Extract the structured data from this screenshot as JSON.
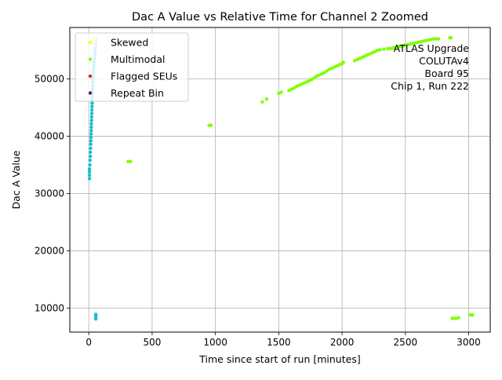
{
  "chart_data": {
    "type": "scatter",
    "title": "Dac A Value vs Relative Time for Channel 2 Zoomed",
    "xlabel": "Time since start of run [minutes]",
    "ylabel": "Dac A Value",
    "xlim": [
      -150,
      3170
    ],
    "ylim": [
      5800,
      59000
    ],
    "xticks": [
      0,
      500,
      1000,
      1500,
      2000,
      2500,
      3000
    ],
    "xtick_labels": [
      "0",
      "500",
      "1000",
      "1500",
      "2000",
      "2500",
      "3000"
    ],
    "yticks": [
      10000,
      20000,
      30000,
      40000,
      50000
    ],
    "ytick_labels": [
      "10000",
      "20000",
      "30000",
      "40000",
      "50000"
    ],
    "grid": true,
    "legend_position": "top-left",
    "annotation": [
      "ATLAS Upgrade",
      "COLUTAv4",
      "Board 95",
      "Chip 1, Run 222"
    ],
    "series": [
      {
        "name": "Skewed",
        "color": "#ffff00",
        "points": [
          [
            40,
            56800
          ],
          [
            45,
            57200
          ],
          [
            50,
            57000
          ]
        ]
      },
      {
        "name": "Multimodal",
        "color": "#7fff00",
        "points": [
          [
            310,
            35600
          ],
          [
            330,
            35600
          ],
          [
            950,
            41900
          ],
          [
            965,
            41900
          ],
          [
            1370,
            46000
          ],
          [
            1405,
            46500
          ],
          [
            1500,
            47500
          ],
          [
            1520,
            47700
          ],
          [
            1580,
            48000
          ],
          [
            1600,
            48200
          ],
          [
            1620,
            48400
          ],
          [
            1640,
            48700
          ],
          [
            1660,
            48900
          ],
          [
            1680,
            49100
          ],
          [
            1700,
            49300
          ],
          [
            1720,
            49500
          ],
          [
            1740,
            49700
          ],
          [
            1760,
            49900
          ],
          [
            1780,
            50200
          ],
          [
            1800,
            50500
          ],
          [
            1820,
            50700
          ],
          [
            1840,
            50900
          ],
          [
            1860,
            51100
          ],
          [
            1880,
            51400
          ],
          [
            1900,
            51700
          ],
          [
            1920,
            51900
          ],
          [
            1940,
            52100
          ],
          [
            1960,
            52300
          ],
          [
            1980,
            52500
          ],
          [
            2000,
            52700
          ],
          [
            2010,
            52900
          ],
          [
            2100,
            53200
          ],
          [
            2120,
            53400
          ],
          [
            2140,
            53600
          ],
          [
            2160,
            53800
          ],
          [
            2180,
            54000
          ],
          [
            2200,
            54200
          ],
          [
            2220,
            54400
          ],
          [
            2240,
            54600
          ],
          [
            2260,
            54800
          ],
          [
            2280,
            55000
          ],
          [
            2300,
            55100
          ],
          [
            2330,
            55200
          ],
          [
            2360,
            55300
          ],
          [
            2380,
            55300
          ],
          [
            2400,
            55400
          ],
          [
            2420,
            55500
          ],
          [
            2440,
            55600
          ],
          [
            2460,
            55700
          ],
          [
            2480,
            55800
          ],
          [
            2500,
            55900
          ],
          [
            2520,
            56000
          ],
          [
            2540,
            56100
          ],
          [
            2560,
            56200
          ],
          [
            2580,
            56300
          ],
          [
            2600,
            56400
          ],
          [
            2620,
            56500
          ],
          [
            2640,
            56600
          ],
          [
            2660,
            56700
          ],
          [
            2680,
            56800
          ],
          [
            2700,
            56900
          ],
          [
            2720,
            57000
          ],
          [
            2740,
            57000
          ],
          [
            2760,
            57000
          ],
          [
            2850,
            57200
          ],
          [
            2860,
            57200
          ],
          [
            2870,
            8200
          ],
          [
            2880,
            8200
          ],
          [
            2900,
            8200
          ],
          [
            2920,
            8300
          ],
          [
            3010,
            8800
          ],
          [
            3030,
            8800
          ]
        ]
      },
      {
        "name": "Flagged SEUs",
        "color": "#d62728",
        "points": []
      },
      {
        "name": "Repeat Bin",
        "color": "#5a1a6e",
        "points": []
      }
    ],
    "unlabeled_series": [
      {
        "color": "#17becf",
        "points": [
          [
            5,
            32600
          ],
          [
            5,
            33200
          ],
          [
            5,
            33800
          ],
          [
            5,
            34300
          ],
          [
            8,
            35000
          ],
          [
            10,
            35800
          ],
          [
            12,
            36500
          ],
          [
            12,
            37200
          ],
          [
            14,
            37900
          ],
          [
            15,
            38600
          ],
          [
            16,
            39200
          ],
          [
            17,
            39800
          ],
          [
            18,
            40400
          ],
          [
            19,
            41000
          ],
          [
            20,
            41600
          ],
          [
            20,
            42200
          ],
          [
            22,
            42800
          ],
          [
            22,
            43400
          ],
          [
            24,
            44000
          ],
          [
            24,
            44600
          ],
          [
            25,
            45200
          ],
          [
            26,
            45800
          ],
          [
            26,
            46400
          ],
          [
            28,
            47000
          ],
          [
            28,
            47600
          ],
          [
            30,
            48200
          ],
          [
            30,
            48800
          ],
          [
            32,
            49400
          ],
          [
            32,
            50000
          ],
          [
            34,
            50600
          ],
          [
            36,
            51200
          ],
          [
            38,
            51800
          ],
          [
            40,
            52400
          ],
          [
            42,
            53000
          ],
          [
            44,
            53600
          ],
          [
            46,
            54200
          ],
          [
            48,
            54800
          ],
          [
            50,
            55400
          ],
          [
            52,
            56000
          ],
          [
            54,
            56600
          ],
          [
            55,
            57000
          ],
          [
            55,
            8100
          ],
          [
            55,
            8400
          ],
          [
            55,
            8700
          ],
          [
            55,
            8900
          ]
        ]
      },
      {
        "color": "#c8f0f0",
        "points": [
          [
            30,
            54000
          ],
          [
            35,
            55000
          ],
          [
            40,
            55800
          ],
          [
            45,
            56400
          ],
          [
            50,
            57000
          ]
        ]
      }
    ]
  }
}
